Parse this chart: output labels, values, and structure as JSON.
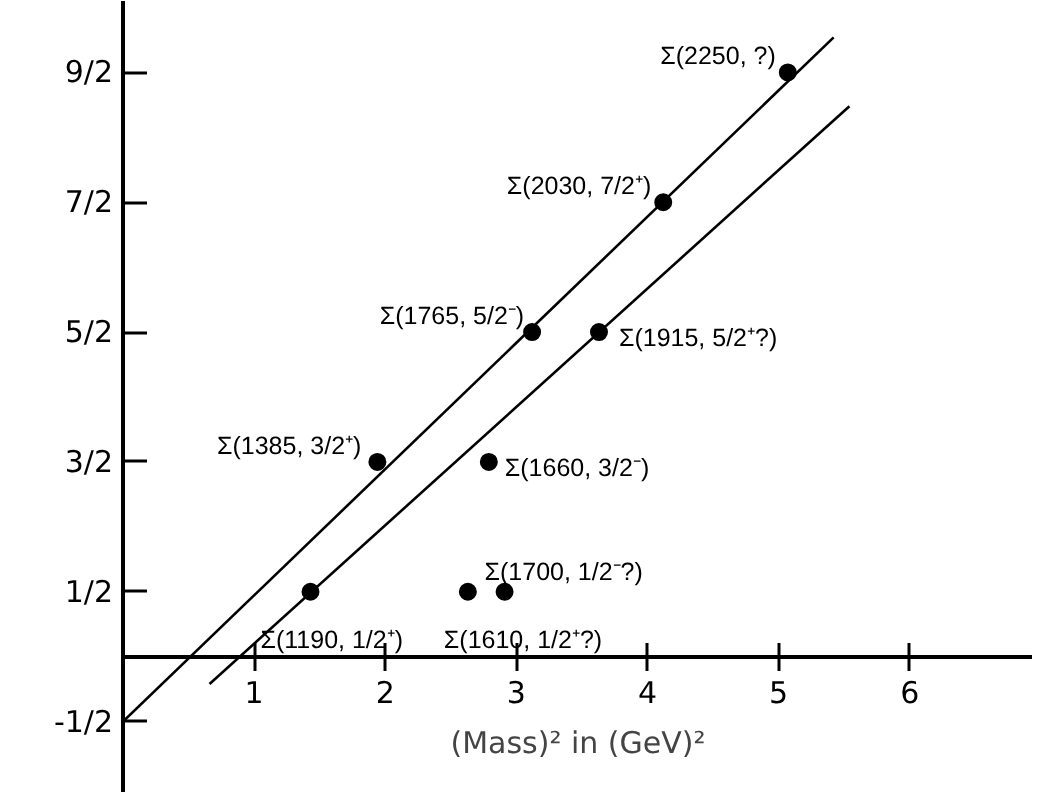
{
  "chart_data": {
    "type": "scatter",
    "xlabel": "(Mass)² in (GeV)²",
    "xlim": [
      0,
      6.94
    ],
    "ylim": [
      -1.05,
      5.05
    ],
    "xticks": [
      1,
      2,
      3,
      4,
      5,
      6
    ],
    "yticks": [
      {
        "value": -0.5,
        "label": "-1/2"
      },
      {
        "value": 0.5,
        "label": "1/2"
      },
      {
        "value": 1.5,
        "label": "3/2"
      },
      {
        "value": 2.5,
        "label": "5/2"
      },
      {
        "value": 3.5,
        "label": "7/2"
      },
      {
        "value": 4.5,
        "label": "9/2"
      }
    ],
    "grid": false,
    "series": [
      {
        "marker": "circle",
        "color": "#000000",
        "x": [
          1.43,
          1.94,
          2.63,
          2.79,
          2.91,
          3.12,
          3.63,
          4.12,
          5.07
        ],
        "values": [
          0.5,
          1.5,
          0.5,
          1.5,
          0.5,
          2.5,
          2.5,
          3.5,
          4.5
        ]
      },
      {
        "type": "line",
        "color": "#000000",
        "x": [
          0,
          5.42
        ],
        "values": [
          -0.5,
          4.77
        ]
      },
      {
        "type": "line",
        "color": "#000000",
        "x": [
          0.66,
          5.54
        ],
        "values": [
          -0.21,
          4.24
        ]
      }
    ],
    "annotations": [
      {
        "text": "Σ(1190, 1/2⁺)",
        "x": 1.43,
        "y": 0.5
      },
      {
        "text": "Σ(1385, 3/2⁺)",
        "x": 1.94,
        "y": 1.5
      },
      {
        "text": "Σ(1610, 1/2⁺?)",
        "x": 2.63,
        "y": 0.5
      },
      {
        "text": "Σ(1660, 3/2⁻)",
        "x": 2.79,
        "y": 1.5
      },
      {
        "text": "Σ(1700, 1/2⁻?)",
        "x": 2.91,
        "y": 0.5
      },
      {
        "text": "Σ(1765, 5/2⁻)",
        "x": 3.12,
        "y": 2.5
      },
      {
        "text": "Σ(1915, 5/2⁺?)",
        "x": 3.63,
        "y": 2.5
      },
      {
        "text": "Σ(2030, 7/2⁺)",
        "x": 4.12,
        "y": 3.5
      },
      {
        "text": "Σ(2250, ?)",
        "x": 5.07,
        "y": 4.5
      }
    ]
  }
}
